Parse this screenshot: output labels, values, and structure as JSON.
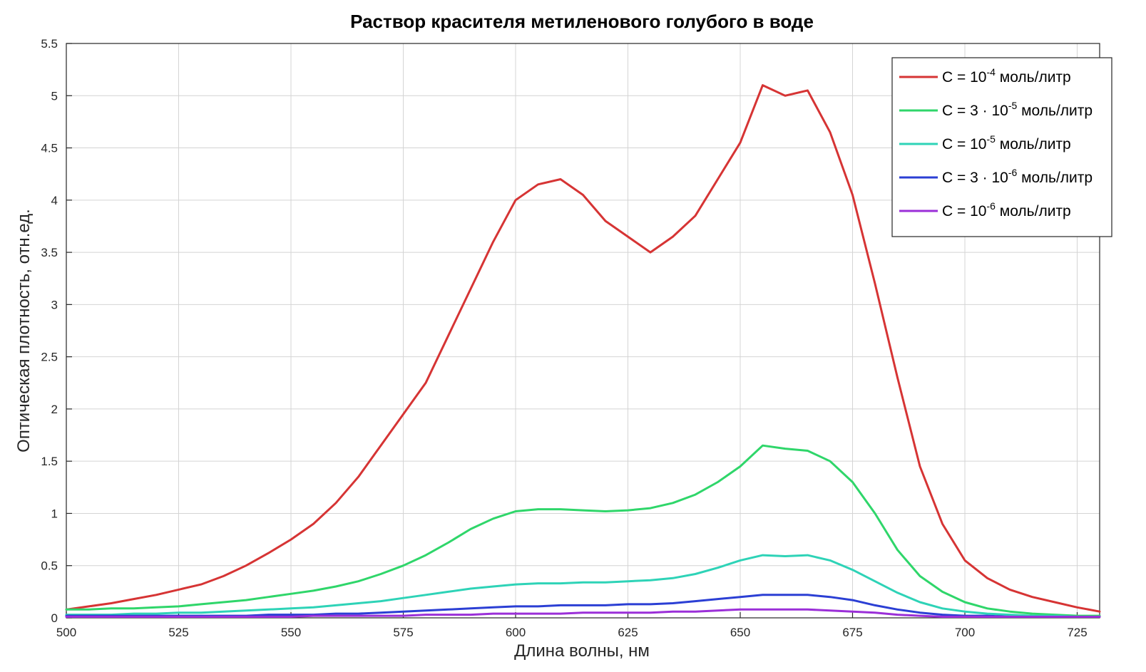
{
  "chart_data": {
    "type": "line",
    "title": "Раствор красителя метиленового голубого в воде",
    "xlabel": "Длина волны, нм",
    "ylabel": "Оптическая плотность, отн.ед.",
    "xlim": [
      500,
      730
    ],
    "ylim": [
      0,
      5.5
    ],
    "xticks": [
      500,
      525,
      550,
      575,
      600,
      625,
      650,
      675,
      700,
      725
    ],
    "yticks": [
      0,
      0.5,
      1,
      1.5,
      2,
      2.5,
      3,
      3.5,
      4,
      4.5,
      5,
      5.5
    ],
    "xtick_labels": [
      "500",
      "525",
      "550",
      "575",
      "600",
      "625",
      "650",
      "675",
      "700",
      "725"
    ],
    "ytick_labels": [
      "0",
      "0.5",
      "1",
      "1.5",
      "2",
      "2.5",
      "3",
      "3.5",
      "4",
      "4.5",
      "5",
      "5.5"
    ],
    "grid": true,
    "legend_position": "top-right",
    "x": [
      500,
      505,
      510,
      515,
      520,
      525,
      530,
      535,
      540,
      545,
      550,
      555,
      560,
      565,
      570,
      575,
      580,
      585,
      590,
      595,
      600,
      605,
      610,
      615,
      620,
      625,
      630,
      635,
      640,
      645,
      650,
      655,
      660,
      665,
      670,
      675,
      680,
      685,
      690,
      695,
      700,
      705,
      710,
      715,
      720,
      725,
      730
    ],
    "series": [
      {
        "name_main": "C = 10",
        "name_sup": "-4",
        "name_suffix": " моль/литр",
        "color": "#d63434",
        "values": [
          0.08,
          0.11,
          0.14,
          0.18,
          0.22,
          0.27,
          0.32,
          0.4,
          0.5,
          0.62,
          0.75,
          0.9,
          1.1,
          1.35,
          1.65,
          1.95,
          2.25,
          2.7,
          3.15,
          3.6,
          4.0,
          4.15,
          4.2,
          4.05,
          3.8,
          3.65,
          3.5,
          3.65,
          3.85,
          4.2,
          4.55,
          5.1,
          5.0,
          5.05,
          4.65,
          4.05,
          3.2,
          2.3,
          1.45,
          0.9,
          0.55,
          0.38,
          0.27,
          0.2,
          0.15,
          0.1,
          0.06
        ]
      },
      {
        "name_main": "C = 3 · 10",
        "name_sup": "-5",
        "name_suffix": " моль/литр",
        "color": "#2fd66a",
        "values": [
          0.08,
          0.08,
          0.09,
          0.09,
          0.1,
          0.11,
          0.13,
          0.15,
          0.17,
          0.2,
          0.23,
          0.26,
          0.3,
          0.35,
          0.42,
          0.5,
          0.6,
          0.72,
          0.85,
          0.95,
          1.02,
          1.04,
          1.04,
          1.03,
          1.02,
          1.03,
          1.05,
          1.1,
          1.18,
          1.3,
          1.45,
          1.65,
          1.62,
          1.6,
          1.5,
          1.3,
          1.0,
          0.65,
          0.4,
          0.25,
          0.15,
          0.09,
          0.06,
          0.04,
          0.03,
          0.02,
          0.02
        ]
      },
      {
        "name_main": "C = 10",
        "name_sup": "-5",
        "name_suffix": " моль/литр",
        "color": "#2ed3b7",
        "values": [
          0.03,
          0.03,
          0.03,
          0.04,
          0.04,
          0.05,
          0.05,
          0.06,
          0.07,
          0.08,
          0.09,
          0.1,
          0.12,
          0.14,
          0.16,
          0.19,
          0.22,
          0.25,
          0.28,
          0.3,
          0.32,
          0.33,
          0.33,
          0.34,
          0.34,
          0.35,
          0.36,
          0.38,
          0.42,
          0.48,
          0.55,
          0.6,
          0.59,
          0.6,
          0.55,
          0.46,
          0.35,
          0.24,
          0.15,
          0.09,
          0.06,
          0.04,
          0.03,
          0.02,
          0.02,
          0.01,
          0.01
        ]
      },
      {
        "name_main": "C = 3 · 10",
        "name_sup": "-6",
        "name_suffix": " моль/литр",
        "color": "#2b3fd4",
        "values": [
          0.02,
          0.02,
          0.02,
          0.02,
          0.02,
          0.02,
          0.02,
          0.02,
          0.02,
          0.03,
          0.03,
          0.03,
          0.04,
          0.04,
          0.05,
          0.06,
          0.07,
          0.08,
          0.09,
          0.1,
          0.11,
          0.11,
          0.12,
          0.12,
          0.12,
          0.13,
          0.13,
          0.14,
          0.16,
          0.18,
          0.2,
          0.22,
          0.22,
          0.22,
          0.2,
          0.17,
          0.12,
          0.08,
          0.05,
          0.03,
          0.02,
          0.02,
          0.01,
          0.01,
          0.01,
          0.01,
          0.01
        ]
      },
      {
        "name_main": "C = 10",
        "name_sup": "-6",
        "name_suffix": " моль/литр",
        "color": "#9b2fd8",
        "values": [
          0.01,
          0.01,
          0.01,
          0.01,
          0.01,
          0.01,
          0.01,
          0.01,
          0.01,
          0.01,
          0.01,
          0.02,
          0.02,
          0.02,
          0.02,
          0.02,
          0.03,
          0.03,
          0.03,
          0.04,
          0.04,
          0.04,
          0.04,
          0.05,
          0.05,
          0.05,
          0.05,
          0.06,
          0.06,
          0.07,
          0.08,
          0.08,
          0.08,
          0.08,
          0.07,
          0.06,
          0.05,
          0.03,
          0.02,
          0.01,
          0.01,
          0.01,
          0.01,
          0.01,
          0.01,
          0.01,
          0.01
        ]
      }
    ]
  }
}
